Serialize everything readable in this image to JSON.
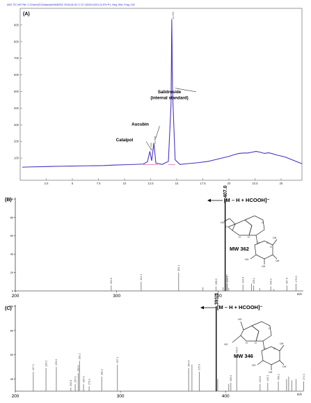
{
  "header": {
    "file_info": "MS2 TIC MS File: C:\\Chem32\\1\\Data\\sal\\180830\\C 2018-08-30 17-07-43\\024-0201.D) ES+P1, Neg, SIM, Frag: 130"
  },
  "colors": {
    "trace_blue": "#2a2ad0",
    "trace_purple": "#a070c0",
    "peak_pink": "#e060a0",
    "bar_gray": "#888888",
    "bar_black": "#000000"
  },
  "chart_data": [
    {
      "type": "line",
      "panel_label": "(A)",
      "y_ticks": [
        "900",
        "800",
        "700",
        "600",
        "500",
        "400",
        "300",
        "200",
        "100"
      ],
      "x_ticks": [
        "2.5",
        "5",
        "7.5",
        "10",
        "12.5",
        "15",
        "17.5",
        "20",
        "22.5",
        "25"
      ],
      "xlim": [
        0,
        27
      ],
      "ylim": [
        0,
        1000
      ],
      "annotations": [
        {
          "text": "Salidroside",
          "x": 14.3,
          "y": 490
        },
        {
          "text": "(internal standard)",
          "x": 14.3,
          "y": 455
        },
        {
          "text": "Aucubin",
          "x": 11.5,
          "y": 295
        },
        {
          "text": "Catalpol",
          "x": 10.0,
          "y": 200
        }
      ],
      "peak_labels": [
        {
          "text": "12.426",
          "x": 12.43,
          "y": 145
        },
        {
          "text": "12.808",
          "x": 12.81,
          "y": 185
        },
        {
          "text": "14.524",
          "x": 14.52,
          "y": 935
        }
      ],
      "series": [
        {
          "x": [
            0.2,
            1,
            2,
            3,
            4,
            5,
            6,
            7,
            8,
            9,
            10,
            11,
            11.8,
            12.2,
            12.43,
            12.6,
            12.81,
            13.0,
            13.6,
            14.2,
            14.45,
            14.524,
            14.6,
            14.85,
            15.3,
            16,
            17,
            18,
            19,
            20,
            20.6,
            21,
            21.4,
            21.8,
            22.2,
            22.6,
            23,
            23.4,
            23.8,
            24.2,
            24.6,
            25,
            25.4,
            25.8,
            26.2,
            26.6,
            27
          ],
          "values": [
            45,
            47,
            48,
            50,
            51,
            52,
            53,
            54,
            55,
            58,
            60,
            62,
            64,
            78,
            140,
            84,
            190,
            70,
            62,
            80,
            420,
            935,
            500,
            90,
            62,
            66,
            72,
            80,
            95,
            110,
            122,
            128,
            130,
            130,
            135,
            140,
            135,
            128,
            132,
            126,
            118,
            112,
            106,
            96,
            86,
            76,
            66
          ]
        }
      ]
    },
    {
      "type": "bar",
      "panel_label": "(B)",
      "y_ticks": [
        "100",
        "80",
        "60",
        "40",
        "20",
        "0"
      ],
      "x_ticks": [
        "200",
        "300",
        "400"
      ],
      "xlabel": "m/z",
      "xlim": [
        200,
        480
      ],
      "ylim": [
        0,
        100
      ],
      "ion_label": "[M – H + HCOOH]⁻",
      "molecule_label": "MW 362",
      "peaks": [
        {
          "mz": 294.6,
          "intensity": 6,
          "label": "294.6"
        },
        {
          "mz": 324.1,
          "intensity": 10,
          "label": "324.1"
        },
        {
          "mz": 361.1,
          "intensity": 20,
          "label": "361.1"
        },
        {
          "mz": 385.0,
          "intensity": 4,
          "label": ""
        },
        {
          "mz": 398.0,
          "intensity": 5,
          "label": "398.0"
        },
        {
          "mz": 405.0,
          "intensity": 4,
          "label": ""
        },
        {
          "mz": 407.0,
          "intensity": 100,
          "label": "407.0"
        },
        {
          "mz": 408.5,
          "intensity": 18,
          "label": ""
        },
        {
          "mz": 409.1,
          "intensity": 8,
          "label": "409.1"
        },
        {
          "mz": 410.5,
          "intensity": 3,
          "label": ""
        },
        {
          "mz": 424.6,
          "intensity": 7,
          "label": "424.6"
        },
        {
          "mz": 433.0,
          "intensity": 8,
          "label": ""
        },
        {
          "mz": 435.1,
          "intensity": 6,
          "label": "435.1"
        },
        {
          "mz": 441.0,
          "intensity": 3,
          "label": ""
        },
        {
          "mz": 452.0,
          "intensity": 5,
          "label": "452.0"
        },
        {
          "mz": 455.0,
          "intensity": 2,
          "label": ""
        },
        {
          "mz": 467.9,
          "intensity": 6,
          "label": "467.9"
        },
        {
          "mz": 476.9,
          "intensity": 8,
          "label": "476.9"
        }
      ]
    },
    {
      "type": "bar",
      "panel_label": "(C)",
      "y_ticks": [
        "100",
        "80",
        "60",
        "40"
      ],
      "x_ticks": [
        "200",
        "300",
        "400"
      ],
      "xlabel": "m/z",
      "xlim": [
        200,
        470
      ],
      "ylim": [
        30,
        100
      ],
      "ion_label": "[M – H + HCOOH]⁻",
      "molecule_label": "MW 346",
      "peaks": [
        {
          "mz": 217.1,
          "intensity": 46,
          "label": "217.1"
        },
        {
          "mz": 229.2,
          "intensity": 49,
          "label": "229.2"
        },
        {
          "mz": 239.0,
          "intensity": 50,
          "label": "239.0"
        },
        {
          "mz": 252.8,
          "intensity": 33,
          "label": "252.8"
        },
        {
          "mz": 257.0,
          "intensity": 36,
          "label": "257.0"
        },
        {
          "mz": 259.9,
          "intensity": 45,
          "label": "259.9"
        },
        {
          "mz": 261.1,
          "intensity": 55,
          "label": "261.1"
        },
        {
          "mz": 264.9,
          "intensity": 36,
          "label": "264.9"
        },
        {
          "mz": 270.2,
          "intensity": 34,
          "label": "270.2"
        },
        {
          "mz": 282.2,
          "intensity": 42,
          "label": "282.2"
        },
        {
          "mz": 297.1,
          "intensity": 52,
          "label": "297.1"
        },
        {
          "mz": 364.9,
          "intensity": 49,
          "label": "364.9"
        },
        {
          "mz": 368.0,
          "intensity": 52,
          "label": ""
        },
        {
          "mz": 375.0,
          "intensity": 46,
          "label": "375.0"
        },
        {
          "mz": 391.1,
          "intensity": 100,
          "label": "391.1"
        },
        {
          "mz": 392.5,
          "intensity": 40,
          "label": ""
        },
        {
          "mz": 403.0,
          "intensity": 36,
          "label": ""
        },
        {
          "mz": 405.0,
          "intensity": 37,
          "label": "405.0"
        },
        {
          "mz": 410.6,
          "intensity": 60,
          "label": "410.6"
        },
        {
          "mz": 432.8,
          "intensity": 36,
          "label": "432.8"
        },
        {
          "mz": 440.1,
          "intensity": 37,
          "label": "440.1"
        },
        {
          "mz": 450.2,
          "intensity": 38,
          "label": "450.2"
        },
        {
          "mz": 458.0,
          "intensity": 40,
          "label": ""
        },
        {
          "mz": 460.0,
          "intensity": 42,
          "label": ""
        },
        {
          "mz": 463.0,
          "intensity": 39,
          "label": ""
        },
        {
          "mz": 467.0,
          "intensity": 40,
          "label": ""
        },
        {
          "mz": 474.3,
          "intensity": 38,
          "label": "474.3"
        }
      ]
    }
  ]
}
